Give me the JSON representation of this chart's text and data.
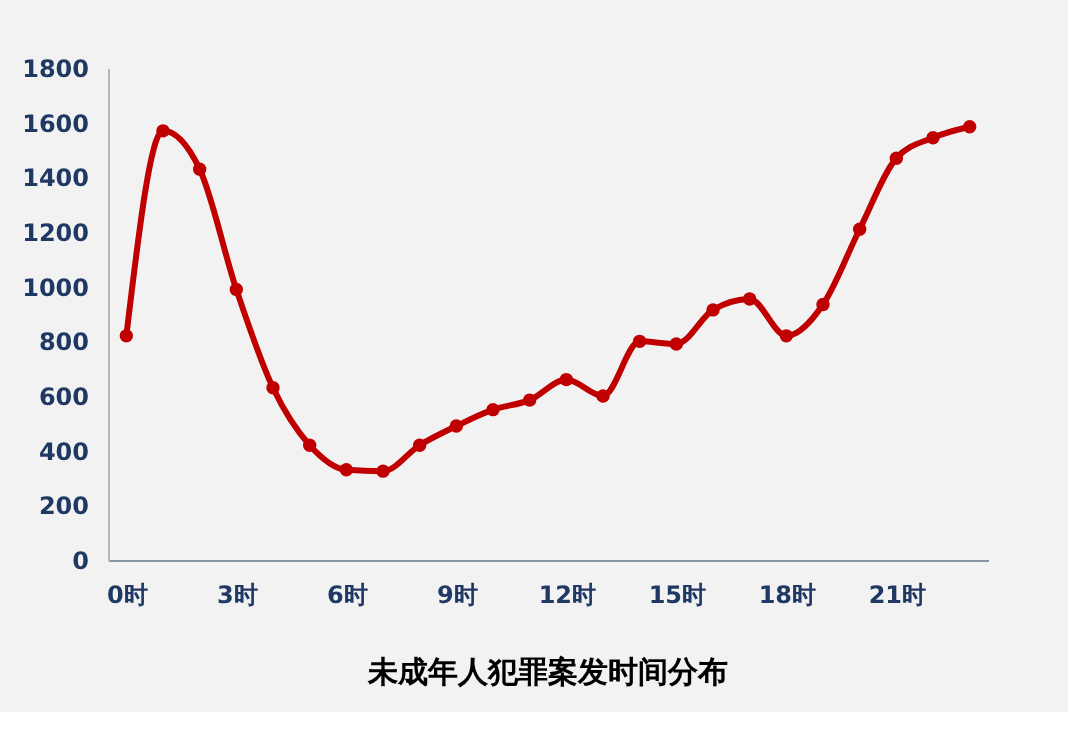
{
  "chart_data": {
    "type": "line",
    "title": "未成年人犯罪案发时间分布",
    "x": [
      0,
      1,
      2,
      3,
      4,
      5,
      6,
      7,
      8,
      9,
      10,
      11,
      12,
      13,
      14,
      15,
      16,
      17,
      18,
      19,
      20,
      21,
      22,
      23
    ],
    "series": [
      {
        "color": "#c00000",
        "values": [
          820,
          1570,
          1430,
          990,
          630,
          420,
          330,
          325,
          420,
          490,
          550,
          585,
          660,
          600,
          800,
          790,
          915,
          955,
          820,
          935,
          1210,
          1470,
          1545,
          1585
        ]
      }
    ],
    "xlim": [
      -0.5,
      23.5
    ],
    "xticks": [
      {
        "value": 0,
        "label": "0时"
      },
      {
        "value": 3,
        "label": "3时"
      },
      {
        "value": 6,
        "label": "6时"
      },
      {
        "value": 9,
        "label": "9时"
      },
      {
        "value": 12,
        "label": "12时"
      },
      {
        "value": 15,
        "label": "15时"
      },
      {
        "value": 18,
        "label": "18时"
      },
      {
        "value": 21,
        "label": "21时"
      }
    ],
    "ylim": [
      0,
      1800
    ],
    "yticks": [
      0,
      200,
      400,
      600,
      800,
      1000,
      1200,
      1400,
      1600,
      1800
    ],
    "grid": false,
    "legend": false,
    "marker": "circle",
    "line_style": "solid"
  }
}
